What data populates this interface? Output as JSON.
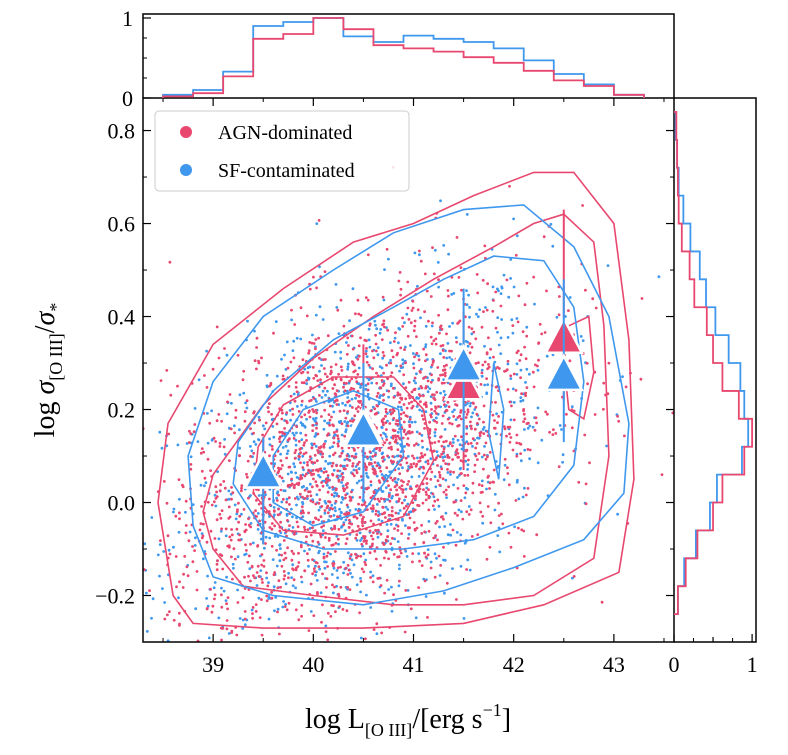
{
  "colors": {
    "agn": "#e8486f",
    "sf": "#3f98ee",
    "axis": "#000000",
    "legend_border": "#cccccc"
  },
  "chart_data": {
    "type": "scatter",
    "main": {
      "xlabel": "log L[O III]/[erg s−1]",
      "ylabel": "log σ[O III]/σ*",
      "xlim": [
        38.3,
        43.6
      ],
      "ylim": [
        -0.3,
        0.87
      ],
      "x_ticks": [
        39,
        40,
        41,
        42,
        43
      ],
      "y_ticks": [
        -0.2,
        0.0,
        0.2,
        0.4,
        0.6,
        0.8
      ],
      "x_tick_labels": [
        "39",
        "40",
        "41",
        "42",
        "43"
      ],
      "y_tick_labels": [
        "−0.2",
        "0.0",
        "0.2",
        "0.4",
        "0.6",
        "0.8"
      ],
      "legend_position": "top-left",
      "series": [
        {
          "name": "AGN-dominated",
          "color": "#e8486f",
          "binned_medians": [
            {
              "x": 39.5,
              "y": 0.06,
              "ylo": -0.09,
              "yhi": 0.14
            },
            {
              "x": 40.5,
              "y": 0.16,
              "ylo": 0.01,
              "yhi": 0.34
            },
            {
              "x": 41.5,
              "y": 0.25,
              "ylo": 0.07,
              "yhi": 0.41
            },
            {
              "x": 42.5,
              "y": 0.35,
              "ylo": 0.22,
              "yhi": 0.63
            }
          ],
          "contours": [
            [
              [
                39.0,
                -0.1
              ],
              [
                39.3,
                -0.18
              ],
              [
                40.0,
                -0.2
              ],
              [
                40.8,
                -0.22
              ],
              [
                41.5,
                -0.22
              ],
              [
                42.2,
                -0.2
              ],
              [
                42.8,
                -0.12
              ],
              [
                42.95,
                0.1
              ],
              [
                42.9,
                0.38
              ],
              [
                42.8,
                0.56
              ],
              [
                42.5,
                0.62
              ],
              [
                42.2,
                0.6
              ],
              [
                41.8,
                0.55
              ],
              [
                41.2,
                0.48
              ],
              [
                40.6,
                0.4
              ],
              [
                40.0,
                0.31
              ],
              [
                39.5,
                0.21
              ],
              [
                39.0,
                0.06
              ],
              [
                38.9,
                -0.02
              ]
            ],
            [
              [
                38.6,
                -0.2
              ],
              [
                38.8,
                -0.26
              ],
              [
                39.5,
                -0.27
              ],
              [
                40.5,
                -0.27
              ],
              [
                41.5,
                -0.26
              ],
              [
                42.3,
                -0.22
              ],
              [
                43.05,
                -0.15
              ],
              [
                43.2,
                0.05
              ],
              [
                43.15,
                0.35
              ],
              [
                43.0,
                0.6
              ],
              [
                42.6,
                0.71
              ],
              [
                42.2,
                0.71
              ],
              [
                41.6,
                0.66
              ],
              [
                41.0,
                0.6
              ],
              [
                40.4,
                0.56
              ],
              [
                39.7,
                0.46
              ],
              [
                39.0,
                0.34
              ],
              [
                38.55,
                0.17
              ],
              [
                38.45,
                0.0
              ]
            ],
            [
              [
                39.4,
                0.02
              ],
              [
                39.7,
                -0.06
              ],
              [
                40.3,
                -0.07
              ],
              [
                40.9,
                -0.03
              ],
              [
                41.2,
                0.09
              ],
              [
                41.1,
                0.2
              ],
              [
                40.8,
                0.27
              ],
              [
                40.2,
                0.27
              ],
              [
                39.7,
                0.21
              ],
              [
                39.45,
                0.12
              ]
            ],
            [
              [
                42.55,
                0.38
              ],
              [
                42.75,
                0.4
              ],
              [
                42.8,
                0.28
              ],
              [
                42.7,
                0.18
              ],
              [
                42.55,
                0.2
              ],
              [
                42.5,
                0.3
              ]
            ]
          ]
        },
        {
          "name": "SF-contaminated",
          "color": "#3f98ee",
          "binned_medians": [
            {
              "x": 39.5,
              "y": 0.06,
              "ylo": -0.09,
              "yhi": 0.14
            },
            {
              "x": 40.5,
              "y": 0.15,
              "ylo": 0.0,
              "yhi": 0.3
            },
            {
              "x": 41.5,
              "y": 0.29,
              "ylo": 0.11,
              "yhi": 0.46
            },
            {
              "x": 42.5,
              "y": 0.27,
              "ylo": 0.13,
              "yhi": 0.48
            }
          ],
          "contours": [
            [
              [
                39.2,
                0.04
              ],
              [
                39.5,
                -0.06
              ],
              [
                40.1,
                -0.1
              ],
              [
                40.9,
                -0.1
              ],
              [
                41.6,
                -0.08
              ],
              [
                42.2,
                -0.03
              ],
              [
                42.6,
                0.08
              ],
              [
                42.7,
                0.26
              ],
              [
                42.6,
                0.42
              ],
              [
                42.3,
                0.52
              ],
              [
                41.8,
                0.53
              ],
              [
                41.3,
                0.48
              ],
              [
                40.8,
                0.42
              ],
              [
                40.2,
                0.35
              ],
              [
                39.6,
                0.24
              ],
              [
                39.25,
                0.13
              ]
            ],
            [
              [
                38.8,
                -0.05
              ],
              [
                39.0,
                -0.16
              ],
              [
                39.6,
                -0.2
              ],
              [
                40.5,
                -0.22
              ],
              [
                41.3,
                -0.19
              ],
              [
                42.0,
                -0.14
              ],
              [
                42.7,
                -0.08
              ],
              [
                43.1,
                0.02
              ],
              [
                43.15,
                0.17
              ],
              [
                42.95,
                0.4
              ],
              [
                42.6,
                0.55
              ],
              [
                42.1,
                0.64
              ],
              [
                41.5,
                0.63
              ],
              [
                40.8,
                0.58
              ],
              [
                40.2,
                0.5
              ],
              [
                39.5,
                0.4
              ],
              [
                39.0,
                0.26
              ],
              [
                38.75,
                0.1
              ]
            ],
            [
              [
                39.6,
                0.0
              ],
              [
                40.0,
                -0.05
              ],
              [
                40.5,
                -0.02
              ],
              [
                40.9,
                0.1
              ],
              [
                40.85,
                0.2
              ],
              [
                40.4,
                0.24
              ],
              [
                39.9,
                0.2
              ],
              [
                39.6,
                0.1
              ]
            ],
            [
              [
                41.8,
                0.3
              ],
              [
                41.9,
                0.2
              ],
              [
                41.85,
                0.05
              ],
              [
                41.75,
                0.15
              ]
            ]
          ]
        }
      ]
    },
    "top_histogram": {
      "type": "step",
      "xlim": [
        38.3,
        43.6
      ],
      "ylim": [
        0,
        1.05
      ],
      "y_ticks": [
        0,
        1
      ],
      "y_tick_labels": [
        "0",
        "1"
      ],
      "bin_edges": [
        38.5,
        38.8,
        39.1,
        39.4,
        39.7,
        40.0,
        40.3,
        40.6,
        40.9,
        41.2,
        41.5,
        41.8,
        42.1,
        42.4,
        42.7,
        43.0,
        43.3
      ],
      "series": [
        {
          "name": "AGN-dominated",
          "color": "#e8486f",
          "values": [
            0.02,
            0.06,
            0.27,
            0.74,
            0.8,
            1.0,
            0.86,
            0.66,
            0.62,
            0.58,
            0.51,
            0.44,
            0.34,
            0.22,
            0.15,
            0.04
          ]
        },
        {
          "name": "SF-contaminated",
          "color": "#3f98ee",
          "values": [
            0.04,
            0.1,
            0.33,
            0.9,
            0.95,
            1.0,
            0.77,
            0.7,
            0.78,
            0.74,
            0.7,
            0.62,
            0.47,
            0.3,
            0.17,
            0.04
          ]
        }
      ]
    },
    "right_histogram": {
      "type": "step",
      "orientation": "horizontal",
      "ylim": [
        -0.3,
        0.87
      ],
      "xlim": [
        0,
        1.05
      ],
      "x_ticks": [
        0,
        0.5,
        1
      ],
      "x_tick_labels": [
        "0",
        "",
        "1"
      ],
      "bin_edges": [
        -0.24,
        -0.18,
        -0.12,
        -0.06,
        0.0,
        0.06,
        0.12,
        0.18,
        0.24,
        0.3,
        0.36,
        0.42,
        0.48,
        0.54,
        0.6,
        0.66,
        0.72,
        0.78,
        0.84
      ],
      "series": [
        {
          "name": "AGN-dominated",
          "color": "#e8486f",
          "values": [
            0.05,
            0.15,
            0.3,
            0.5,
            0.62,
            0.9,
            1.0,
            0.83,
            0.62,
            0.5,
            0.42,
            0.26,
            0.2,
            0.1,
            0.06,
            0.05,
            0.04,
            0.03
          ]
        },
        {
          "name": "SF-contaminated",
          "color": "#3f98ee",
          "values": [
            0.05,
            0.13,
            0.28,
            0.46,
            0.55,
            0.87,
            0.95,
            0.9,
            0.85,
            0.7,
            0.53,
            0.41,
            0.33,
            0.21,
            0.12,
            0.06,
            0.04,
            0.02
          ]
        }
      ]
    }
  }
}
